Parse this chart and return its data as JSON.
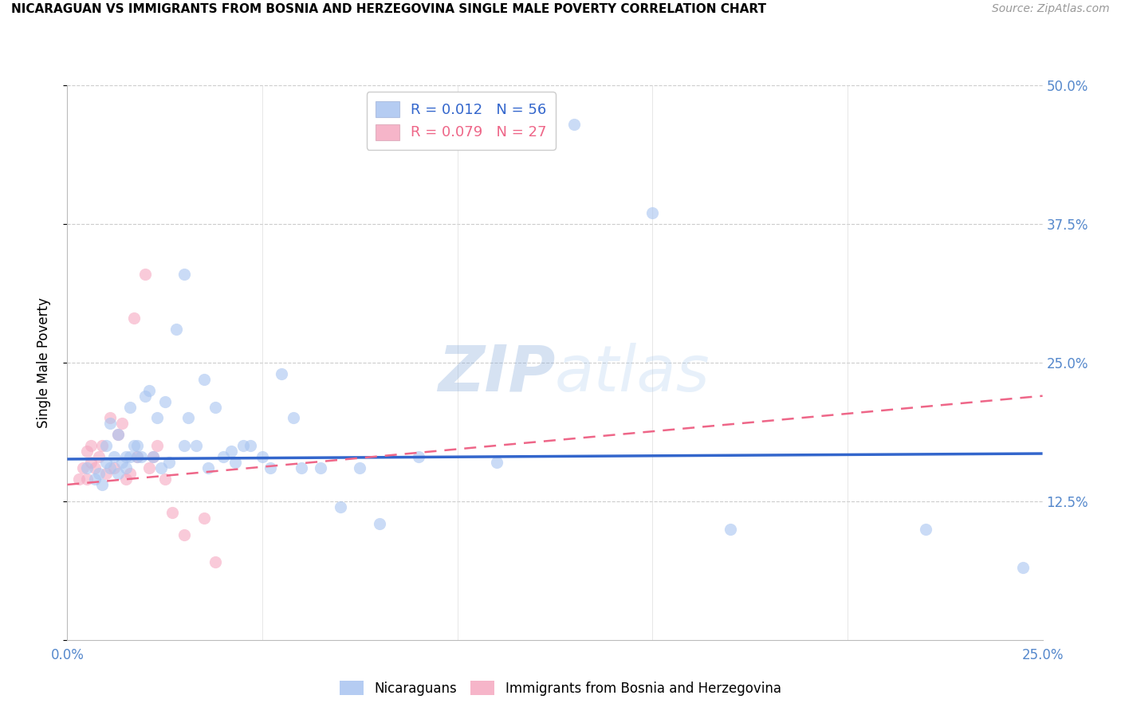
{
  "title": "NICARAGUAN VS IMMIGRANTS FROM BOSNIA AND HERZEGOVINA SINGLE MALE POVERTY CORRELATION CHART",
  "source": "Source: ZipAtlas.com",
  "ylabel": "Single Male Poverty",
  "xlim": [
    0.0,
    0.25
  ],
  "ylim": [
    0.0,
    0.5
  ],
  "watermark": "ZIPatlas",
  "legend_r1": "R = 0.012",
  "legend_n1": "N = 56",
  "legend_r2": "R = 0.079",
  "legend_n2": "N = 27",
  "blue_color": "#A8C4F0",
  "pink_color": "#F5A8C0",
  "blue_line_color": "#3366CC",
  "pink_line_color": "#EE6688",
  "scatter_alpha": 0.6,
  "scatter_size": 120,
  "blue_dots_x": [
    0.005,
    0.007,
    0.008,
    0.009,
    0.01,
    0.01,
    0.011,
    0.011,
    0.012,
    0.013,
    0.013,
    0.014,
    0.015,
    0.015,
    0.016,
    0.016,
    0.017,
    0.018,
    0.018,
    0.019,
    0.02,
    0.021,
    0.022,
    0.023,
    0.024,
    0.025,
    0.026,
    0.028,
    0.03,
    0.03,
    0.031,
    0.033,
    0.035,
    0.036,
    0.038,
    0.04,
    0.042,
    0.043,
    0.045,
    0.047,
    0.05,
    0.052,
    0.055,
    0.058,
    0.06,
    0.065,
    0.07,
    0.075,
    0.08,
    0.09,
    0.11,
    0.13,
    0.15,
    0.17,
    0.22,
    0.245
  ],
  "blue_dots_y": [
    0.155,
    0.145,
    0.15,
    0.14,
    0.16,
    0.175,
    0.155,
    0.195,
    0.165,
    0.15,
    0.185,
    0.16,
    0.155,
    0.165,
    0.21,
    0.165,
    0.175,
    0.165,
    0.175,
    0.165,
    0.22,
    0.225,
    0.165,
    0.2,
    0.155,
    0.215,
    0.16,
    0.28,
    0.33,
    0.175,
    0.2,
    0.175,
    0.235,
    0.155,
    0.21,
    0.165,
    0.17,
    0.16,
    0.175,
    0.175,
    0.165,
    0.155,
    0.24,
    0.2,
    0.155,
    0.155,
    0.12,
    0.155,
    0.105,
    0.165,
    0.16,
    0.465,
    0.385,
    0.1,
    0.1,
    0.065
  ],
  "pink_dots_x": [
    0.003,
    0.004,
    0.005,
    0.005,
    0.006,
    0.006,
    0.007,
    0.008,
    0.009,
    0.01,
    0.011,
    0.012,
    0.013,
    0.014,
    0.015,
    0.016,
    0.017,
    0.018,
    0.02,
    0.021,
    0.022,
    0.023,
    0.025,
    0.027,
    0.03,
    0.035,
    0.038
  ],
  "pink_dots_y": [
    0.145,
    0.155,
    0.17,
    0.145,
    0.16,
    0.175,
    0.155,
    0.165,
    0.175,
    0.15,
    0.2,
    0.155,
    0.185,
    0.195,
    0.145,
    0.15,
    0.29,
    0.165,
    0.33,
    0.155,
    0.165,
    0.175,
    0.145,
    0.115,
    0.095,
    0.11,
    0.07
  ],
  "blue_line_y_start": 0.163,
  "blue_line_y_end": 0.168,
  "pink_line_y_start": 0.14,
  "pink_line_y_end": 0.22
}
